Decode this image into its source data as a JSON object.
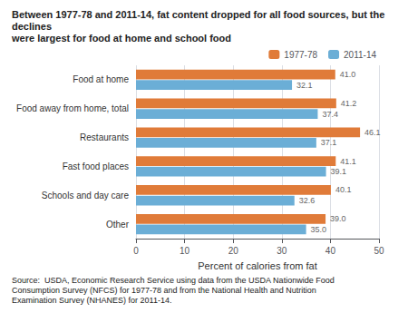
{
  "chart_data": {
    "type": "bar",
    "orientation": "horizontal",
    "title": "Between 1977-78 and 2011-14, fat content dropped for all food sources, but the declines\nwere largest for food at home and school food",
    "xlabel": "Percent of calories from fat",
    "annotations": [
      "Source:  USDA, Economic Research Service using data from the USDA Nationwide Food\nConsumption Survey (NFCS) for 1977-78 and from the National Health and Nutrition\nExamination Survey (NHANES) for 2011-14."
    ],
    "categories": [
      "Food at home",
      "Food away from home, total",
      "Restaurants",
      "Fast food places",
      "Schools and day care",
      "Other"
    ],
    "series": [
      {
        "name": "1977-78",
        "color": "#E07B39",
        "values": [
          41.0,
          41.2,
          46.1,
          41.1,
          40.1,
          39.0
        ],
        "value_labels": [
          "41.0",
          "41.2",
          "46.1",
          "41.1",
          "40.1",
          "39.0"
        ]
      },
      {
        "name": "2011-14",
        "color": "#6BAED6",
        "values": [
          32.1,
          37.4,
          37.1,
          39.1,
          32.6,
          35.0
        ],
        "value_labels": [
          "32.1",
          "37.4",
          "37.1",
          "39.1",
          "32.6",
          "35.0"
        ]
      }
    ],
    "xlim": [
      0,
      50
    ],
    "xticks": [
      0,
      10,
      20,
      30,
      40,
      50
    ],
    "grid": true,
    "legend": "upper right",
    "data_labels": true
  }
}
